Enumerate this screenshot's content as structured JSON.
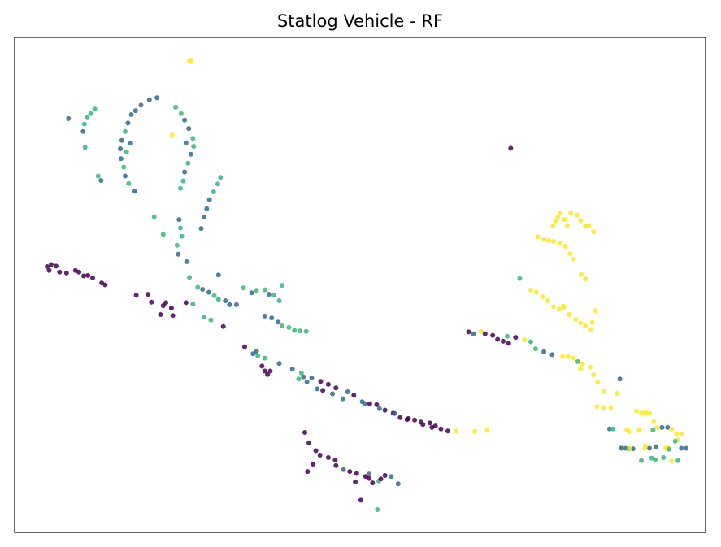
{
  "chart_data": {
    "type": "scatter",
    "title": "Statlog Vehicle - RF",
    "xlabel": "",
    "ylabel": "",
    "xlim": [
      0,
      100
    ],
    "ylim": [
      0,
      100
    ],
    "grid": false,
    "ticks": false,
    "colors": {
      "c0": "#440154",
      "c1": "#31688e",
      "c2": "#35b779",
      "c3": "#fde725"
    },
    "points": [
      [
        25.3,
        95.3,
        "c3"
      ],
      [
        25.5,
        95.3,
        "c3"
      ],
      [
        22.8,
        80.3,
        "c3"
      ],
      [
        25.5,
        95.4,
        "c3"
      ],
      [
        7.8,
        83.6,
        "c1"
      ],
      [
        9.9,
        81.0,
        "c1"
      ],
      [
        10.1,
        82.5,
        "c2"
      ],
      [
        10.5,
        83.8,
        "c2"
      ],
      [
        11.6,
        85.5,
        "c2"
      ],
      [
        11.0,
        84.6,
        "c2"
      ],
      [
        10.2,
        77.8,
        "c2"
      ],
      [
        12.1,
        72.0,
        "c2"
      ],
      [
        12.5,
        71.1,
        "c1"
      ],
      [
        17.5,
        85.2,
        "c1"
      ],
      [
        18.3,
        86.3,
        "c1"
      ],
      [
        19.5,
        87.4,
        "c1"
      ],
      [
        20.6,
        87.8,
        "c1"
      ],
      [
        16.9,
        84.4,
        "c1"
      ],
      [
        16.4,
        82.7,
        "c1"
      ],
      [
        16.0,
        81.0,
        "c2"
      ],
      [
        15.5,
        79.2,
        "c1"
      ],
      [
        15.3,
        77.5,
        "c1"
      ],
      [
        15.4,
        75.5,
        "c1"
      ],
      [
        15.8,
        73.8,
        "c2"
      ],
      [
        16.0,
        72.0,
        "c1"
      ],
      [
        16.5,
        70.5,
        "c2"
      ],
      [
        17.4,
        68.9,
        "c1"
      ],
      [
        16.2,
        76.9,
        "c2"
      ],
      [
        16.8,
        78.6,
        "c1"
      ],
      [
        23.3,
        85.9,
        "c2"
      ],
      [
        24.1,
        84.6,
        "c2"
      ],
      [
        24.6,
        83.3,
        "c1"
      ],
      [
        25.2,
        81.6,
        "c1"
      ],
      [
        25.8,
        79.6,
        "c2"
      ],
      [
        25.9,
        78.0,
        "c2"
      ],
      [
        25.5,
        76.4,
        "c1"
      ],
      [
        25.1,
        74.6,
        "c2"
      ],
      [
        24.6,
        72.8,
        "c1"
      ],
      [
        24.4,
        71.0,
        "c2"
      ],
      [
        24.0,
        69.5,
        "c2"
      ],
      [
        24.8,
        78.7,
        "c1"
      ],
      [
        29.8,
        71.7,
        "c2"
      ],
      [
        29.4,
        70.4,
        "c2"
      ],
      [
        28.8,
        68.8,
        "c2"
      ],
      [
        28.2,
        67.2,
        "c1"
      ],
      [
        27.8,
        65.4,
        "c1"
      ],
      [
        27.4,
        63.7,
        "c1"
      ],
      [
        27.0,
        61.4,
        "c1"
      ],
      [
        20.2,
        63.8,
        "c2"
      ],
      [
        21.5,
        60.2,
        "c2"
      ],
      [
        23.8,
        63.2,
        "c1"
      ],
      [
        24.0,
        61.5,
        "c2"
      ],
      [
        24.2,
        59.8,
        "c2"
      ],
      [
        23.5,
        58.0,
        "c2"
      ],
      [
        23.7,
        56.2,
        "c1"
      ],
      [
        24.9,
        54.7,
        "c1"
      ],
      [
        4.7,
        53.7,
        "c0"
      ],
      [
        5.3,
        54.1,
        "c0"
      ],
      [
        6.0,
        53.8,
        "c0"
      ],
      [
        5.0,
        52.9,
        "c0"
      ],
      [
        6.5,
        52.6,
        "c0"
      ],
      [
        7.5,
        52.4,
        "c0"
      ],
      [
        8.8,
        52.9,
        "c0"
      ],
      [
        9.3,
        52.6,
        "c0"
      ],
      [
        10.0,
        51.8,
        "c0"
      ],
      [
        10.6,
        51.9,
        "c0"
      ],
      [
        11.3,
        51.4,
        "c0"
      ],
      [
        12.6,
        50.4,
        "c0"
      ],
      [
        13.1,
        50.0,
        "c0"
      ],
      [
        17.6,
        47.9,
        "c0"
      ],
      [
        19.3,
        48.1,
        "c0"
      ],
      [
        19.8,
        46.5,
        "c0"
      ],
      [
        21.5,
        45.8,
        "c0"
      ],
      [
        21.9,
        46.4,
        "c0"
      ],
      [
        22.7,
        45.3,
        "c0"
      ],
      [
        21.1,
        44.0,
        "c0"
      ],
      [
        22.9,
        43.8,
        "c0"
      ],
      [
        24.8,
        46.4,
        "c0"
      ],
      [
        25.3,
        51.5,
        "c2"
      ],
      [
        26.5,
        49.5,
        "c2"
      ],
      [
        27.2,
        49.1,
        "c1"
      ],
      [
        28.1,
        48.5,
        "c1"
      ],
      [
        28.9,
        47.8,
        "c2"
      ],
      [
        29.5,
        47.1,
        "c2"
      ],
      [
        30.5,
        46.8,
        "c1"
      ],
      [
        31.1,
        46.0,
        "c1"
      ],
      [
        32.1,
        46.0,
        "c1"
      ],
      [
        33.1,
        49.4,
        "c2"
      ],
      [
        34.3,
        48.4,
        "c1"
      ],
      [
        35.0,
        48.9,
        "c2"
      ],
      [
        36.2,
        49.0,
        "c2"
      ],
      [
        36.8,
        48.1,
        "c1"
      ],
      [
        37.5,
        48.0,
        "c2"
      ],
      [
        38.7,
        49.9,
        "c2"
      ],
      [
        38.3,
        46.8,
        "c2"
      ],
      [
        29.5,
        52.0,
        "c1"
      ],
      [
        25.8,
        46.1,
        "c2"
      ],
      [
        27.4,
        43.5,
        "c2"
      ],
      [
        28.4,
        42.9,
        "c2"
      ],
      [
        30.2,
        41.6,
        "c0"
      ],
      [
        36.2,
        43.7,
        "c1"
      ],
      [
        37.2,
        43.3,
        "c1"
      ],
      [
        38.1,
        42.5,
        "c1"
      ],
      [
        38.7,
        41.7,
        "c2"
      ],
      [
        39.7,
        41.4,
        "c2"
      ],
      [
        40.5,
        40.8,
        "c2"
      ],
      [
        41.3,
        40.7,
        "c2"
      ],
      [
        42.2,
        40.6,
        "c2"
      ],
      [
        33.3,
        37.5,
        "c0"
      ],
      [
        34.5,
        36.1,
        "c1"
      ],
      [
        36.2,
        35.2,
        "c2"
      ],
      [
        38.3,
        34.1,
        "c1"
      ],
      [
        40.2,
        33.0,
        "c1"
      ],
      [
        41.5,
        32.2,
        "c2"
      ],
      [
        41.8,
        31.4,
        "c1"
      ],
      [
        43.0,
        31.2,
        "c1"
      ],
      [
        44.3,
        30.5,
        "c0"
      ],
      [
        45.4,
        29.9,
        "c0"
      ],
      [
        46.5,
        29.2,
        "c0"
      ],
      [
        48.2,
        28.4,
        "c1"
      ],
      [
        49.1,
        27.7,
        "c0"
      ],
      [
        50.3,
        26.4,
        "c1"
      ],
      [
        51.4,
        26.0,
        "c0"
      ],
      [
        52.4,
        25.8,
        "c0"
      ],
      [
        53.6,
        24.7,
        "c0"
      ],
      [
        54.8,
        24.1,
        "c0"
      ],
      [
        55.8,
        23.2,
        "c0"
      ],
      [
        56.8,
        22.8,
        "c0"
      ],
      [
        57.9,
        22.7,
        "c0"
      ],
      [
        59.1,
        21.8,
        "c0"
      ],
      [
        60.1,
        22.1,
        "c0"
      ],
      [
        60.9,
        21.5,
        "c0"
      ],
      [
        61.7,
        20.9,
        "c0"
      ],
      [
        62.7,
        20.5,
        "c0"
      ],
      [
        63.9,
        20.5,
        "c3"
      ],
      [
        66.6,
        20.4,
        "c3"
      ],
      [
        68.4,
        20.6,
        "c3"
      ],
      [
        41.1,
        31.0,
        "c2"
      ],
      [
        42.3,
        30.4,
        "c1"
      ],
      [
        43.8,
        29.0,
        "c1"
      ],
      [
        44.6,
        28.7,
        "c0"
      ],
      [
        46.0,
        28.0,
        "c1"
      ],
      [
        47.5,
        27.0,
        "c1"
      ],
      [
        50.7,
        26.0,
        "c1"
      ],
      [
        52.8,
        25.0,
        "c1"
      ],
      [
        55.0,
        24.0,
        "c1"
      ],
      [
        57.0,
        23.0,
        "c0"
      ],
      [
        58.8,
        22.3,
        "c0"
      ],
      [
        60.4,
        21.2,
        "c0"
      ],
      [
        35.0,
        36.6,
        "c1"
      ],
      [
        35.2,
        35.7,
        "c2"
      ],
      [
        35.8,
        33.6,
        "c0"
      ],
      [
        36.2,
        32.6,
        "c0"
      ],
      [
        36.6,
        31.9,
        "c0"
      ],
      [
        37.0,
        32.6,
        "c0"
      ],
      [
        42.0,
        20.2,
        "c0"
      ],
      [
        42.6,
        18.1,
        "c0"
      ],
      [
        43.6,
        16.5,
        "c0"
      ],
      [
        44.2,
        15.6,
        "c0"
      ],
      [
        45.4,
        15.1,
        "c0"
      ],
      [
        46.4,
        14.6,
        "c0"
      ],
      [
        46.5,
        13.5,
        "c0"
      ],
      [
        47.6,
        12.7,
        "c1"
      ],
      [
        48.5,
        12.3,
        "c0"
      ],
      [
        49.5,
        11.9,
        "c0"
      ],
      [
        50.8,
        11.3,
        "c0"
      ],
      [
        49.3,
        10.2,
        "c0"
      ],
      [
        52.7,
        10.4,
        "c2"
      ],
      [
        53.0,
        10.8,
        "c0"
      ],
      [
        53.6,
        11.5,
        "c0"
      ],
      [
        54.5,
        11.3,
        "c1"
      ],
      [
        55.5,
        9.8,
        "c1"
      ],
      [
        43.2,
        13.8,
        "c0"
      ],
      [
        42.4,
        12.3,
        "c0"
      ],
      [
        51.3,
        10.9,
        "c0"
      ],
      [
        51.8,
        10.0,
        "c0"
      ],
      [
        50.1,
        6.5,
        "c0"
      ],
      [
        52.5,
        4.6,
        "c2"
      ],
      [
        51.3,
        11.8,
        "c1"
      ],
      [
        65.7,
        40.5,
        "c0"
      ],
      [
        66.4,
        40.1,
        "c1"
      ],
      [
        67.5,
        40.6,
        "c3"
      ],
      [
        68.1,
        40.1,
        "c0"
      ],
      [
        69.2,
        39.8,
        "c0"
      ],
      [
        69.9,
        39.0,
        "c0"
      ],
      [
        70.7,
        38.6,
        "c0"
      ],
      [
        71.5,
        38.2,
        "c0"
      ],
      [
        72.5,
        39.4,
        "c0"
      ],
      [
        71.3,
        39.6,
        "c2"
      ],
      [
        73.8,
        38.9,
        "c3"
      ],
      [
        74.7,
        38.5,
        "c2"
      ],
      [
        75.4,
        37.1,
        "c2"
      ],
      [
        76.6,
        36.5,
        "c1"
      ],
      [
        77.8,
        35.9,
        "c1"
      ],
      [
        71.8,
        77.6,
        "c0"
      ],
      [
        73.1,
        51.3,
        "c2"
      ],
      [
        79.3,
        35.5,
        "c3"
      ],
      [
        80.1,
        35.5,
        "c3"
      ],
      [
        80.9,
        35.2,
        "c3"
      ],
      [
        81.5,
        34.5,
        "c2"
      ],
      [
        82.2,
        34.0,
        "c3"
      ],
      [
        83.3,
        33.4,
        "c3"
      ],
      [
        81.9,
        33.1,
        "c3"
      ],
      [
        83.8,
        31.8,
        "c3"
      ],
      [
        84.4,
        30.4,
        "c3"
      ],
      [
        85.3,
        28.6,
        "c3"
      ],
      [
        87.6,
        31.0,
        "c1"
      ],
      [
        87.2,
        28.1,
        "c3"
      ],
      [
        74.7,
        49.0,
        "c3"
      ],
      [
        75.5,
        48.5,
        "c3"
      ],
      [
        76.4,
        47.6,
        "c3"
      ],
      [
        77.2,
        46.8,
        "c3"
      ],
      [
        78.0,
        45.6,
        "c3"
      ],
      [
        78.8,
        45.1,
        "c3"
      ],
      [
        79.5,
        45.5,
        "c3"
      ],
      [
        80.3,
        44.0,
        "c3"
      ],
      [
        81.2,
        43.0,
        "c3"
      ],
      [
        81.9,
        42.3,
        "c3"
      ],
      [
        82.6,
        41.7,
        "c3"
      ],
      [
        83.3,
        41.0,
        "c3"
      ],
      [
        84.0,
        44.8,
        "c3"
      ],
      [
        83.6,
        42.4,
        "c3"
      ],
      [
        75.7,
        59.7,
        "c3"
      ],
      [
        76.6,
        59.2,
        "c3"
      ],
      [
        77.3,
        59.0,
        "c3"
      ],
      [
        78.0,
        58.8,
        "c3"
      ],
      [
        78.9,
        58.4,
        "c3"
      ],
      [
        79.7,
        57.8,
        "c3"
      ],
      [
        80.4,
        56.3,
        "c3"
      ],
      [
        80.9,
        55.2,
        "c3"
      ],
      [
        82.0,
        52.1,
        "c3"
      ],
      [
        82.6,
        51.2,
        "c3"
      ],
      [
        79.4,
        45.7,
        "c3"
      ],
      [
        77.9,
        61.9,
        "c3"
      ],
      [
        78.6,
        63.7,
        "c3"
      ],
      [
        79.0,
        64.5,
        "c3"
      ],
      [
        79.6,
        63.2,
        "c3"
      ],
      [
        80.5,
        64.6,
        "c3"
      ],
      [
        81.4,
        64.1,
        "c3"
      ],
      [
        81.9,
        63.0,
        "c3"
      ],
      [
        82.6,
        61.8,
        "c3"
      ],
      [
        83.1,
        62.0,
        "c3"
      ],
      [
        83.8,
        60.7,
        "c3"
      ],
      [
        78.3,
        62.9,
        "c3"
      ],
      [
        80.0,
        62.0,
        "c3"
      ],
      [
        84.3,
        25.4,
        "c3"
      ],
      [
        85.2,
        25.2,
        "c3"
      ],
      [
        86.3,
        25.1,
        "c3"
      ],
      [
        86.1,
        20.9,
        "c1"
      ],
      [
        86.6,
        20.9,
        "c2"
      ],
      [
        88.4,
        17.0,
        "c1"
      ],
      [
        88.9,
        16.9,
        "c2"
      ],
      [
        89.5,
        16.9,
        "c1"
      ],
      [
        90.0,
        24.5,
        "c3"
      ],
      [
        90.7,
        24.1,
        "c3"
      ],
      [
        91.3,
        24.2,
        "c3"
      ],
      [
        91.9,
        24.1,
        "c3"
      ],
      [
        92.5,
        22.4,
        "c3"
      ],
      [
        93.0,
        21.2,
        "c3"
      ],
      [
        93.7,
        21.2,
        "c1"
      ],
      [
        94.5,
        21.2,
        "c1"
      ],
      [
        95.1,
        20.9,
        "c3"
      ],
      [
        95.8,
        19.9,
        "c3"
      ],
      [
        96.5,
        19.8,
        "c3"
      ],
      [
        96.0,
        18.7,
        "c3"
      ],
      [
        96.5,
        17.0,
        "c1"
      ],
      [
        97.2,
        17.0,
        "c1"
      ],
      [
        95.6,
        18.4,
        "c2"
      ],
      [
        94.2,
        17.0,
        "c3"
      ],
      [
        94.6,
        17.1,
        "c3"
      ],
      [
        92.4,
        20.7,
        "c2"
      ],
      [
        91.2,
        17.0,
        "c3"
      ],
      [
        90.4,
        20.6,
        "c3"
      ],
      [
        88.6,
        20.7,
        "c3"
      ],
      [
        89.0,
        17.0,
        "c3"
      ],
      [
        87.8,
        17.2,
        "c3"
      ],
      [
        87.8,
        17.0,
        "c1"
      ],
      [
        88.9,
        20.4,
        "c3"
      ],
      [
        91.9,
        17.0,
        "c1"
      ],
      [
        92.2,
        15.0,
        "c2"
      ],
      [
        95.1,
        14.4,
        "c3"
      ],
      [
        94.7,
        16.8,
        "c2"
      ],
      [
        96.0,
        14.5,
        "c2"
      ],
      [
        93.9,
        15.1,
        "c2"
      ],
      [
        90.7,
        14.5,
        "c2"
      ],
      [
        92.8,
        17.3,
        "c1"
      ],
      [
        91.3,
        17.5,
        "c3"
      ],
      [
        92.7,
        14.7,
        "c2"
      ]
    ]
  }
}
